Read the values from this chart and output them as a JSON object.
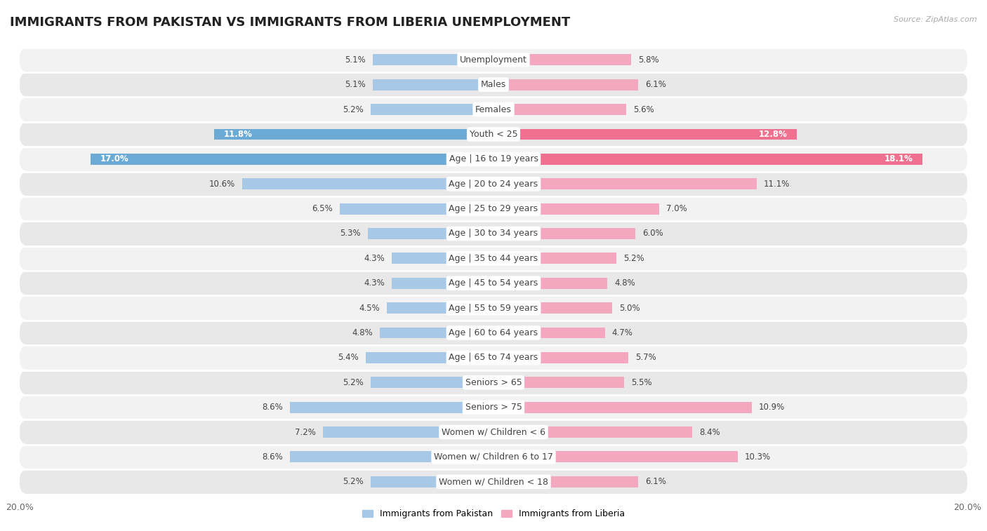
{
  "title": "IMMIGRANTS FROM PAKISTAN VS IMMIGRANTS FROM LIBERIA UNEMPLOYMENT",
  "source": "Source: ZipAtlas.com",
  "categories": [
    "Unemployment",
    "Males",
    "Females",
    "Youth < 25",
    "Age | 16 to 19 years",
    "Age | 20 to 24 years",
    "Age | 25 to 29 years",
    "Age | 30 to 34 years",
    "Age | 35 to 44 years",
    "Age | 45 to 54 years",
    "Age | 55 to 59 years",
    "Age | 60 to 64 years",
    "Age | 65 to 74 years",
    "Seniors > 65",
    "Seniors > 75",
    "Women w/ Children < 6",
    "Women w/ Children 6 to 17",
    "Women w/ Children < 18"
  ],
  "pakistan_values": [
    5.1,
    5.1,
    5.2,
    11.8,
    17.0,
    10.6,
    6.5,
    5.3,
    4.3,
    4.3,
    4.5,
    4.8,
    5.4,
    5.2,
    8.6,
    7.2,
    8.6,
    5.2
  ],
  "liberia_values": [
    5.8,
    6.1,
    5.6,
    12.8,
    18.1,
    11.1,
    7.0,
    6.0,
    5.2,
    4.8,
    5.0,
    4.7,
    5.7,
    5.5,
    10.9,
    8.4,
    10.3,
    6.1
  ],
  "pakistan_color": "#a8c8e8",
  "liberia_color": "#f4a8c0",
  "pakistan_highlight_color": "#6aaad4",
  "liberia_highlight_color": "#f07090",
  "bar_height": 0.45,
  "xlim": 20.0,
  "row_bg_even": "#f2f2f2",
  "row_bg_odd": "#e8e8e8",
  "title_fontsize": 13,
  "label_fontsize": 9,
  "value_fontsize": 8.5,
  "highlight_rows": [
    3,
    4
  ]
}
